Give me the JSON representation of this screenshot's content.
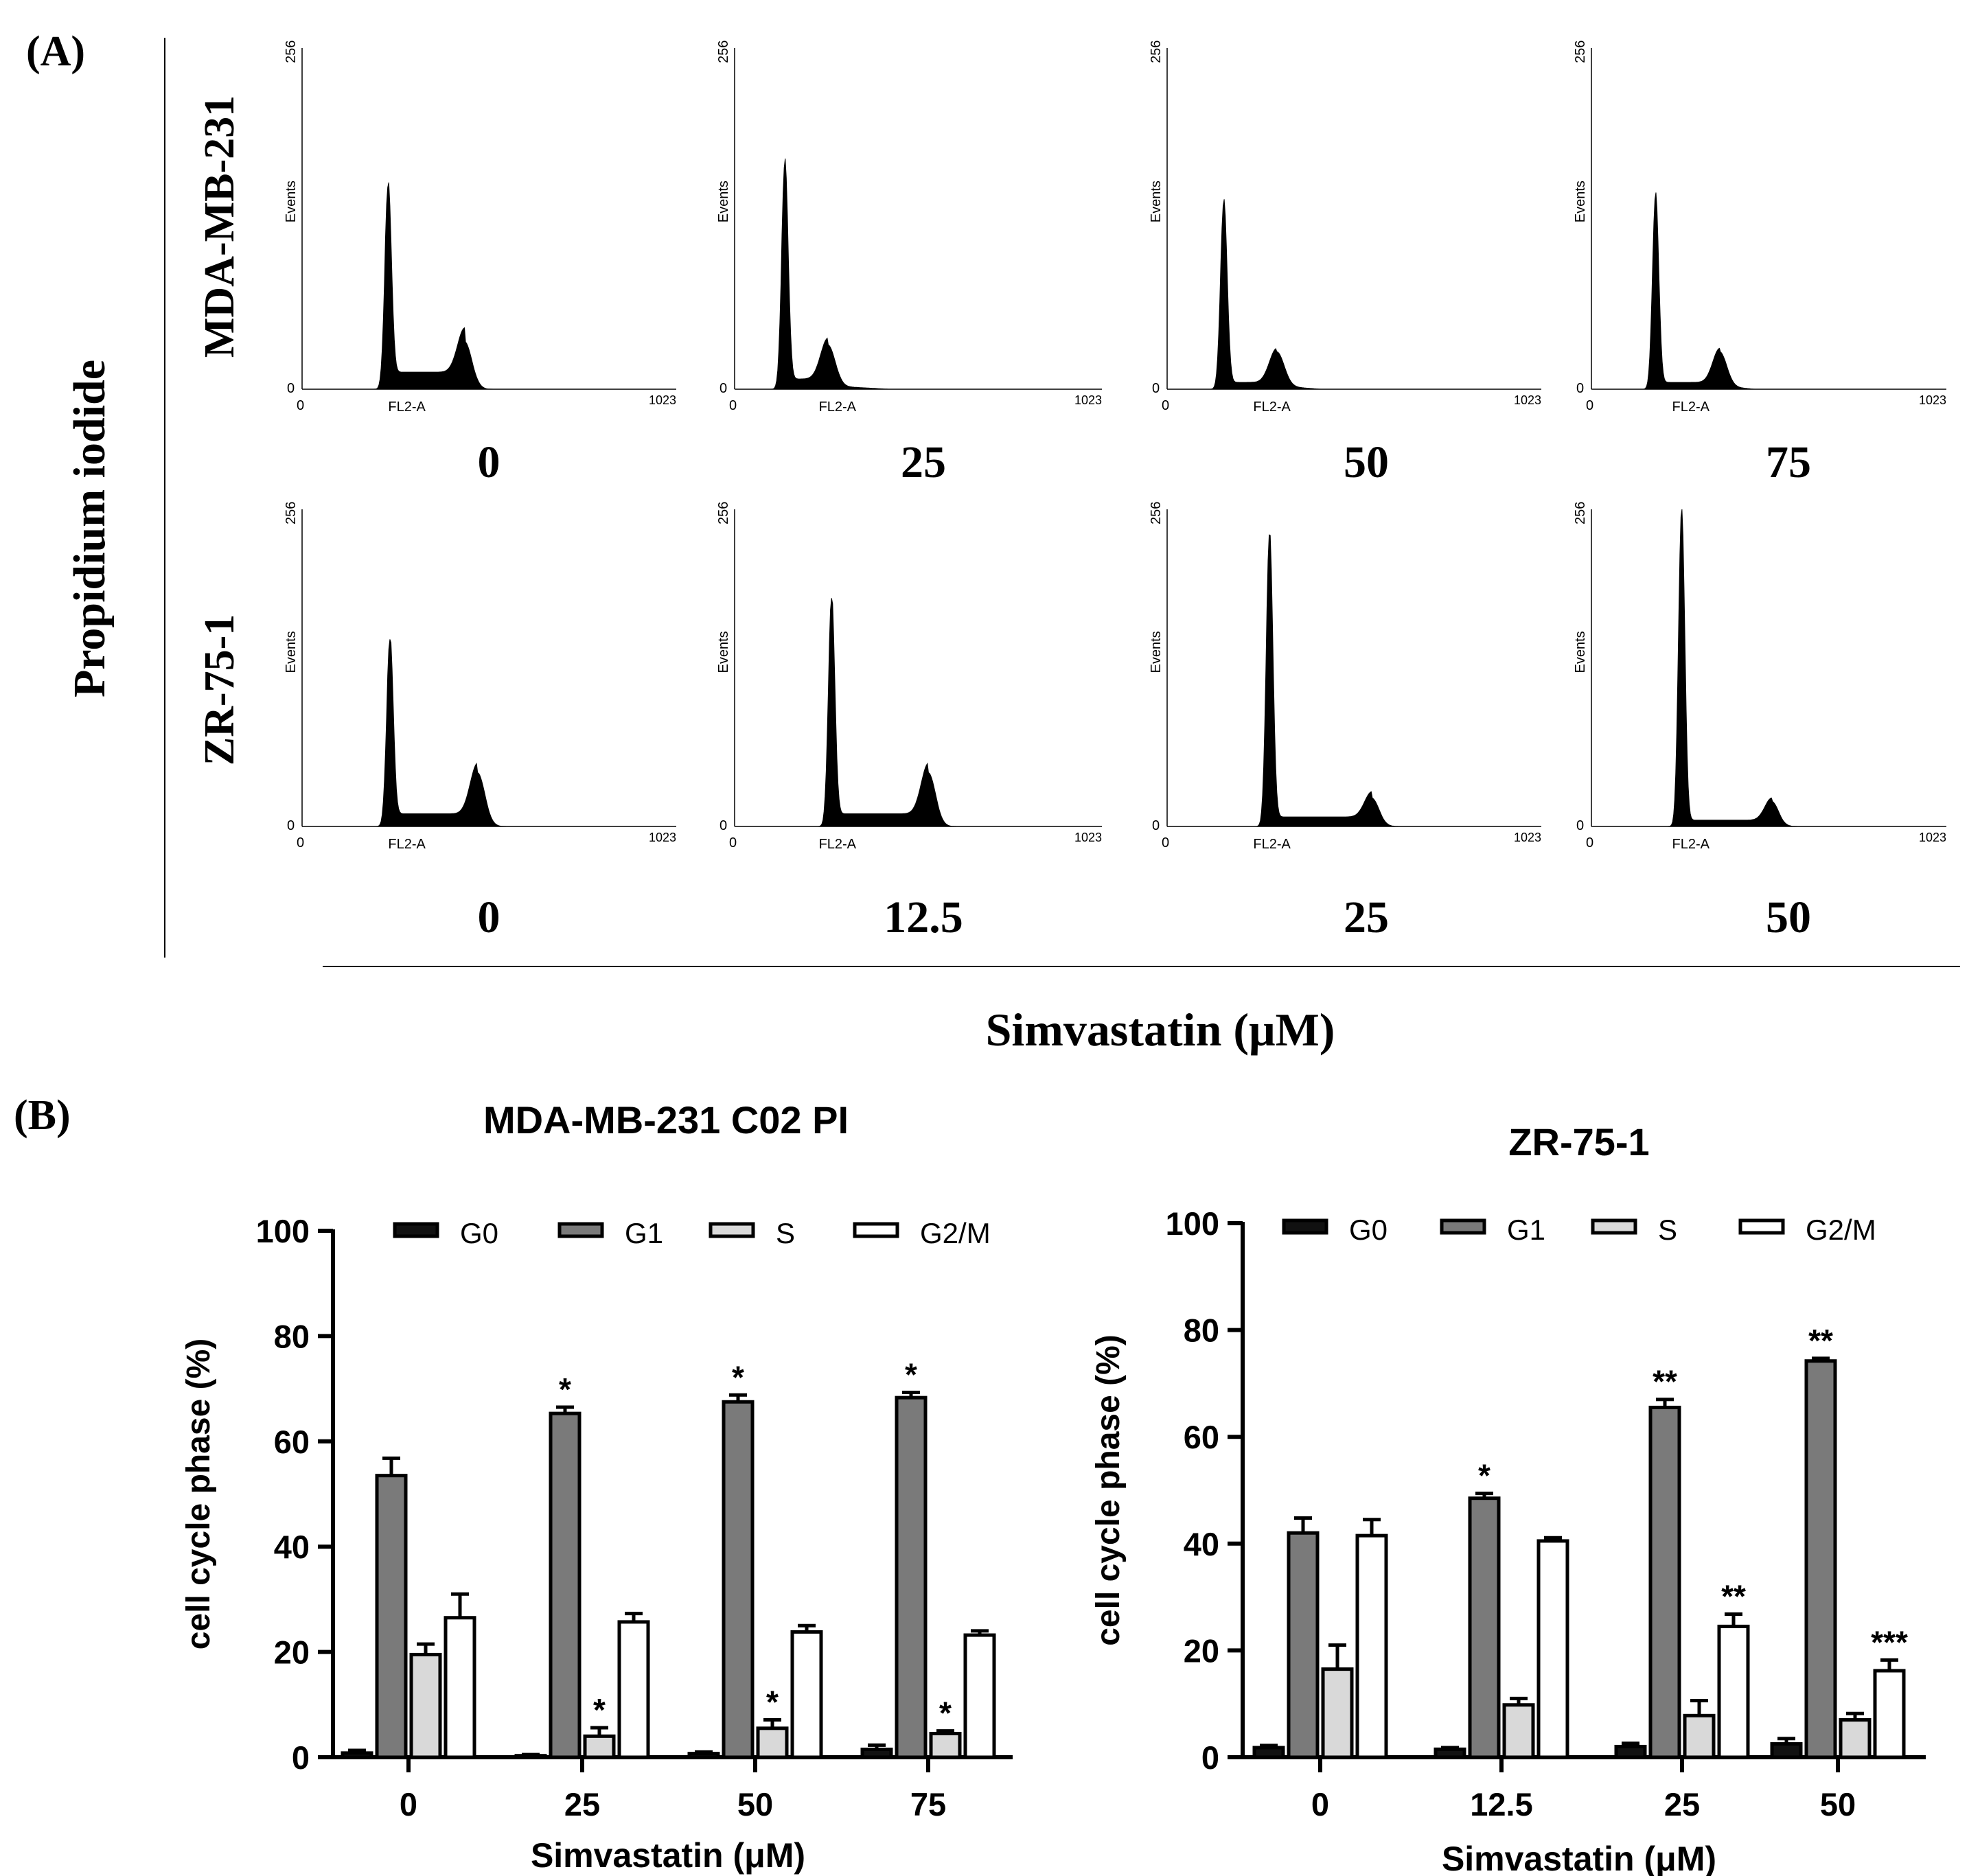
{
  "panel_a": {
    "label": "(A)",
    "y_title": "Propidium iodide",
    "x_title": "Simvastatin (μM)",
    "rows": [
      {
        "cell_line": "MDA-MB-231",
        "doses": [
          "0",
          "25",
          "50",
          "75"
        ],
        "histograms": [
          {
            "g1_height": 0.57,
            "g2_height": 0.13,
            "g1_ch": 235,
            "g2_ch": 445,
            "s_plateau": 0.05,
            "tail_end": 470
          },
          {
            "g1_height": 0.65,
            "g2_height": 0.12,
            "g1_ch": 140,
            "g2_ch": 260,
            "s_plateau": 0.03,
            "tail_end": 430
          },
          {
            "g1_height": 0.54,
            "g2_height": 0.1,
            "g1_ch": 155,
            "g2_ch": 300,
            "s_plateau": 0.02,
            "tail_end": 420
          },
          {
            "g1_height": 0.56,
            "g2_height": 0.1,
            "g1_ch": 185,
            "g2_ch": 370,
            "s_plateau": 0.02,
            "tail_end": 470
          }
        ],
        "axis": {
          "y_max": "256",
          "y_min": "0",
          "x_min": "0",
          "x_max": "1023",
          "y_label": "Events",
          "x_label": "FL2-A"
        }
      },
      {
        "cell_line": "ZR-75-1",
        "doses": [
          "0",
          "12.5",
          "25",
          "50"
        ],
        "histograms": [
          {
            "g1_height": 0.57,
            "g2_height": 0.16,
            "g1_ch": 240,
            "g2_ch": 480,
            "s_plateau": 0.04,
            "tail_end": 510
          },
          {
            "g1_height": 0.7,
            "g2_height": 0.16,
            "g1_ch": 270,
            "g2_ch": 540,
            "s_plateau": 0.04,
            "tail_end": 570
          },
          {
            "g1_height": 0.91,
            "g2_height": 0.08,
            "g1_ch": 280,
            "g2_ch": 560,
            "s_plateau": 0.03,
            "tail_end": 590
          },
          {
            "g1_height": 0.99,
            "g2_height": 0.07,
            "g1_ch": 260,
            "g2_ch": 520,
            "s_plateau": 0.02,
            "tail_end": 550
          }
        ],
        "axis": {
          "y_max": "256",
          "y_min": "0",
          "x_min": "0",
          "x_max": "1023",
          "y_label": "Events",
          "x_label": "FL2-A"
        }
      }
    ]
  },
  "panel_b_label": "(B)",
  "chart_data": [
    {
      "type": "bar",
      "title": "MDA-MB-231 C02 PI",
      "xlabel": "Simvastatin (μM)",
      "ylabel": "cell cycle phase (%)",
      "ylim": [
        0,
        100
      ],
      "yticks": [
        "0",
        "20",
        "40",
        "60",
        "80",
        "100"
      ],
      "categories": [
        "0",
        "25",
        "50",
        "75"
      ],
      "legend": [
        "G0",
        "G1",
        "S",
        "G2/M"
      ],
      "series": [
        {
          "name": "G0",
          "color": "#111111",
          "values": [
            0.8,
            0.3,
            0.7,
            1.5
          ],
          "errors": [
            0.5,
            0.2,
            0.3,
            0.8
          ],
          "marks": [
            "",
            "",
            "",
            ""
          ]
        },
        {
          "name": "G1",
          "color": "#7a7a7a",
          "values": [
            53.5,
            65.3,
            67.5,
            68.3
          ],
          "errors": [
            3.3,
            1.2,
            1.3,
            1.0
          ],
          "marks": [
            "",
            "*",
            "*",
            "*"
          ]
        },
        {
          "name": "S",
          "color": "#d9d9d9",
          "values": [
            19.5,
            4.0,
            5.5,
            4.5
          ],
          "errors": [
            2.0,
            1.6,
            1.6,
            0.5
          ],
          "marks": [
            "",
            "*",
            "*",
            "*"
          ]
        },
        {
          "name": "G2/M",
          "color": "#ffffff",
          "values": [
            26.5,
            25.7,
            23.8,
            23.2
          ],
          "errors": [
            4.5,
            1.6,
            1.2,
            0.8
          ],
          "marks": [
            "",
            "",
            "",
            ""
          ]
        }
      ]
    },
    {
      "type": "bar",
      "title": "ZR-75-1",
      "xlabel": "Simvastatin (μM)",
      "ylabel": "cell cycle phase (%)",
      "ylim": [
        0,
        100
      ],
      "yticks": [
        "0",
        "20",
        "40",
        "60",
        "80",
        "100"
      ],
      "categories": [
        "0",
        "12.5",
        "25",
        "50"
      ],
      "legend": [
        "G0",
        "G1",
        "S",
        "G2/M"
      ],
      "series": [
        {
          "name": "G0",
          "color": "#111111",
          "values": [
            1.8,
            1.5,
            2.0,
            2.5
          ],
          "errors": [
            0.4,
            0.3,
            0.6,
            1.0
          ],
          "marks": [
            "",
            "",
            "",
            ""
          ]
        },
        {
          "name": "G1",
          "color": "#7a7a7a",
          "values": [
            42.0,
            48.5,
            65.5,
            74.2
          ],
          "errors": [
            2.8,
            0.9,
            1.5,
            0.5
          ],
          "marks": [
            "",
            "*",
            "**",
            "**"
          ]
        },
        {
          "name": "S",
          "color": "#d9d9d9",
          "values": [
            16.5,
            9.8,
            7.8,
            7.0
          ],
          "errors": [
            4.5,
            1.2,
            2.8,
            1.2
          ],
          "marks": [
            "",
            "",
            "",
            ""
          ]
        },
        {
          "name": "G2/M",
          "color": "#ffffff",
          "values": [
            41.5,
            40.5,
            24.5,
            16.2
          ],
          "errors": [
            3.0,
            0.6,
            2.3,
            2.0
          ],
          "marks": [
            "",
            "",
            "**",
            "***"
          ]
        }
      ]
    }
  ]
}
